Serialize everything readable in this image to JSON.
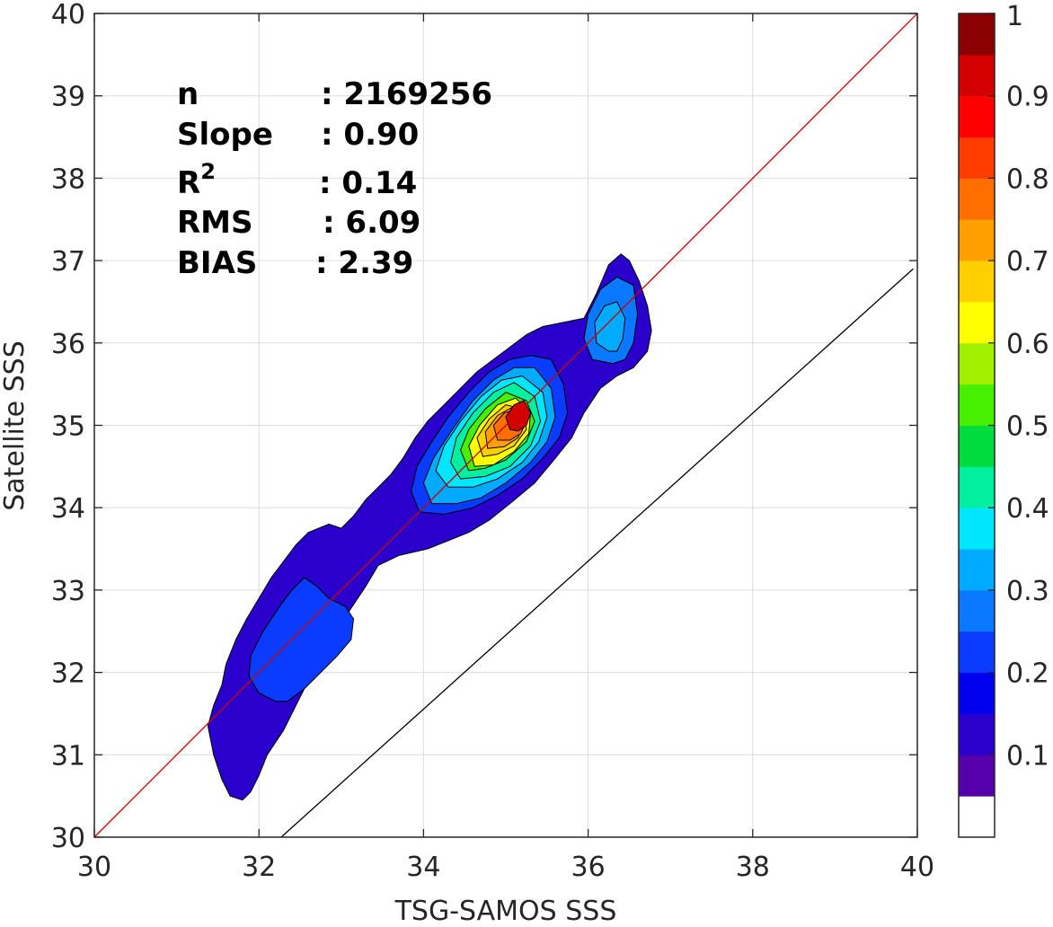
{
  "chart_data": {
    "type": "contour",
    "xlabel": "TSG-SAMOS SSS",
    "ylabel": "Satellite SSS",
    "xlim": [
      30,
      40
    ],
    "ylim": [
      30,
      40
    ],
    "x_ticks": [
      "30",
      "32",
      "34",
      "36",
      "38",
      "40"
    ],
    "y_ticks": [
      "30",
      "31",
      "32",
      "33",
      "34",
      "35",
      "36",
      "37",
      "38",
      "39",
      "40"
    ],
    "grid": true,
    "stats": {
      "n_label": "n",
      "n_value": ": 2169256",
      "slope_label": "Slope",
      "slope_value": ": 0.90",
      "r2_label": "R",
      "r2_sup": "2",
      "r2_value": ": 0.14",
      "rms_label": "RMS",
      "rms_value": ": 6.09",
      "bias_label": "BIAS",
      "bias_value": ": 2.39"
    },
    "lines": [
      {
        "name": "1:1",
        "color": "#d00000",
        "points": [
          [
            30,
            30
          ],
          [
            40,
            40
          ]
        ]
      },
      {
        "name": "fit",
        "color": "#000000",
        "points": [
          [
            32.27,
            30
          ],
          [
            39.95,
            36.9
          ]
        ]
      }
    ],
    "colorbar": {
      "labels": [
        "1",
        "0.9",
        "0.8",
        "0.7",
        "0.6",
        "0.5",
        "0.4",
        "0.3",
        "0.2",
        "0.1"
      ],
      "label_values": [
        1,
        0.9,
        0.8,
        0.7,
        0.6,
        0.5,
        0.4,
        0.3,
        0.2,
        0.1
      ],
      "colors": [
        "#ffffff",
        "#5500aa",
        "#2a00cc",
        "#0000ee",
        "#0a3cff",
        "#0a78ff",
        "#00aaff",
        "#00e6ff",
        "#00f0a0",
        "#00dc3c",
        "#46f000",
        "#a0f000",
        "#ffff00",
        "#ffd000",
        "#ffa000",
        "#ff6e00",
        "#ff3c00",
        "#ff0000",
        "#d20000",
        "#8b0000"
      ]
    },
    "contours": [
      {
        "level": 0.05,
        "color": "#2a00cc",
        "points": [
          [
            31.8,
            30.45
          ],
          [
            31.65,
            30.5
          ],
          [
            31.55,
            30.7
          ],
          [
            31.45,
            31.0
          ],
          [
            31.38,
            31.35
          ],
          [
            31.45,
            31.6
          ],
          [
            31.55,
            31.85
          ],
          [
            31.6,
            32.1
          ],
          [
            31.72,
            32.4
          ],
          [
            31.85,
            32.65
          ],
          [
            32.0,
            32.9
          ],
          [
            32.15,
            33.15
          ],
          [
            32.3,
            33.35
          ],
          [
            32.45,
            33.55
          ],
          [
            32.6,
            33.7
          ],
          [
            32.85,
            33.8
          ],
          [
            33.0,
            33.75
          ],
          [
            33.15,
            33.9
          ],
          [
            33.3,
            34.1
          ],
          [
            33.45,
            34.25
          ],
          [
            33.6,
            34.4
          ],
          [
            33.75,
            34.6
          ],
          [
            33.9,
            34.85
          ],
          [
            34.05,
            35.05
          ],
          [
            34.25,
            35.25
          ],
          [
            34.45,
            35.45
          ],
          [
            34.65,
            35.65
          ],
          [
            34.85,
            35.8
          ],
          [
            35.05,
            35.95
          ],
          [
            35.25,
            36.1
          ],
          [
            35.45,
            36.2
          ],
          [
            35.7,
            36.25
          ],
          [
            35.95,
            36.3
          ],
          [
            36.1,
            36.6
          ],
          [
            36.25,
            36.95
          ],
          [
            36.4,
            37.08
          ],
          [
            36.5,
            37.0
          ],
          [
            36.62,
            36.75
          ],
          [
            36.72,
            36.45
          ],
          [
            36.77,
            36.15
          ],
          [
            36.72,
            35.9
          ],
          [
            36.55,
            35.7
          ],
          [
            36.35,
            35.6
          ],
          [
            36.15,
            35.45
          ],
          [
            35.95,
            35.15
          ],
          [
            35.8,
            34.85
          ],
          [
            35.6,
            34.6
          ],
          [
            35.35,
            34.3
          ],
          [
            35.05,
            34.05
          ],
          [
            34.8,
            33.85
          ],
          [
            34.55,
            33.7
          ],
          [
            34.3,
            33.6
          ],
          [
            34.05,
            33.5
          ],
          [
            33.7,
            33.42
          ],
          [
            33.45,
            33.3
          ],
          [
            33.3,
            33.05
          ],
          [
            33.1,
            32.75
          ],
          [
            32.95,
            32.45
          ],
          [
            32.8,
            32.15
          ],
          [
            32.6,
            31.9
          ],
          [
            32.45,
            31.6
          ],
          [
            32.3,
            31.3
          ],
          [
            32.1,
            31.0
          ],
          [
            32.0,
            30.75
          ],
          [
            31.9,
            30.55
          ]
        ]
      },
      {
        "level": 0.15,
        "color": "#0a3cff",
        "points": [
          [
            32.2,
            31.65
          ],
          [
            32.0,
            31.75
          ],
          [
            31.88,
            31.95
          ],
          [
            31.9,
            32.2
          ],
          [
            32.05,
            32.5
          ],
          [
            32.25,
            32.8
          ],
          [
            32.4,
            33.0
          ],
          [
            32.55,
            33.15
          ],
          [
            32.7,
            33.05
          ],
          [
            32.85,
            32.9
          ],
          [
            33.05,
            32.8
          ],
          [
            33.15,
            32.65
          ],
          [
            33.12,
            32.4
          ],
          [
            32.95,
            32.2
          ],
          [
            32.75,
            32.0
          ],
          [
            32.55,
            31.8
          ],
          [
            32.35,
            31.65
          ]
        ]
      },
      {
        "level": 0.15,
        "color": "#0a3cff",
        "points": [
          [
            33.95,
            33.95
          ],
          [
            33.85,
            34.2
          ],
          [
            33.92,
            34.5
          ],
          [
            34.1,
            34.8
          ],
          [
            34.3,
            35.1
          ],
          [
            34.55,
            35.4
          ],
          [
            34.8,
            35.65
          ],
          [
            35.05,
            35.8
          ],
          [
            35.3,
            35.85
          ],
          [
            35.55,
            35.8
          ],
          [
            35.7,
            35.5
          ],
          [
            35.75,
            35.15
          ],
          [
            35.65,
            34.85
          ],
          [
            35.45,
            34.6
          ],
          [
            35.2,
            34.35
          ],
          [
            34.9,
            34.15
          ],
          [
            34.6,
            34.0
          ],
          [
            34.25,
            33.92
          ]
        ]
      },
      {
        "level": 0.15,
        "color": "#0a78ff",
        "points": [
          [
            36.3,
            35.75
          ],
          [
            36.05,
            35.8
          ],
          [
            35.95,
            36.05
          ],
          [
            36.0,
            36.35
          ],
          [
            36.15,
            36.65
          ],
          [
            36.35,
            36.8
          ],
          [
            36.55,
            36.7
          ],
          [
            36.6,
            36.35
          ],
          [
            36.55,
            36.0
          ],
          [
            36.45,
            35.8
          ]
        ]
      },
      {
        "level": 0.25,
        "color": "#00aaff",
        "points": [
          [
            36.25,
            35.9
          ],
          [
            36.1,
            36.0
          ],
          [
            36.08,
            36.25
          ],
          [
            36.2,
            36.45
          ],
          [
            36.35,
            36.5
          ],
          [
            36.45,
            36.3
          ],
          [
            36.42,
            36.05
          ],
          [
            36.35,
            35.9
          ]
        ]
      },
      {
        "level": 0.3,
        "color": "#00aaff",
        "points": [
          [
            34.1,
            34.05
          ],
          [
            34.0,
            34.3
          ],
          [
            34.12,
            34.6
          ],
          [
            34.35,
            34.95
          ],
          [
            34.6,
            35.3
          ],
          [
            34.85,
            35.55
          ],
          [
            35.1,
            35.7
          ],
          [
            35.35,
            35.7
          ],
          [
            35.55,
            35.45
          ],
          [
            35.6,
            35.1
          ],
          [
            35.5,
            34.8
          ],
          [
            35.3,
            34.55
          ],
          [
            35.0,
            34.3
          ],
          [
            34.7,
            34.12
          ],
          [
            34.4,
            34.05
          ]
        ]
      },
      {
        "level": 0.4,
        "color": "#00e6ff",
        "points": [
          [
            34.3,
            34.25
          ],
          [
            34.15,
            34.45
          ],
          [
            34.25,
            34.75
          ],
          [
            34.45,
            35.05
          ],
          [
            34.7,
            35.35
          ],
          [
            34.95,
            35.55
          ],
          [
            35.2,
            35.6
          ],
          [
            35.45,
            35.4
          ],
          [
            35.5,
            35.1
          ],
          [
            35.4,
            34.8
          ],
          [
            35.2,
            34.55
          ],
          [
            34.9,
            34.35
          ],
          [
            34.6,
            34.25
          ]
        ]
      },
      {
        "level": 0.45,
        "color": "#00f0a0",
        "points": [
          [
            34.45,
            34.35
          ],
          [
            34.33,
            34.55
          ],
          [
            34.4,
            34.85
          ],
          [
            34.6,
            35.15
          ],
          [
            34.85,
            35.4
          ],
          [
            35.1,
            35.52
          ],
          [
            35.35,
            35.35
          ],
          [
            35.42,
            35.05
          ],
          [
            35.3,
            34.75
          ],
          [
            35.05,
            34.5
          ],
          [
            34.75,
            34.38
          ]
        ]
      },
      {
        "level": 0.55,
        "color": "#46f000",
        "points": [
          [
            34.55,
            34.45
          ],
          [
            34.45,
            34.7
          ],
          [
            34.55,
            34.95
          ],
          [
            34.75,
            35.2
          ],
          [
            35.0,
            35.4
          ],
          [
            35.25,
            35.3
          ],
          [
            35.35,
            35.05
          ],
          [
            35.25,
            34.8
          ],
          [
            35.0,
            34.58
          ],
          [
            34.75,
            34.48
          ]
        ]
      },
      {
        "level": 0.6,
        "color": "#ffff00",
        "points": [
          [
            34.62,
            34.5
          ],
          [
            34.55,
            34.75
          ],
          [
            34.68,
            35.0
          ],
          [
            34.9,
            35.25
          ],
          [
            35.12,
            35.33
          ],
          [
            35.3,
            35.15
          ],
          [
            35.28,
            34.9
          ],
          [
            35.1,
            34.68
          ],
          [
            34.85,
            34.52
          ]
        ]
      },
      {
        "level": 0.7,
        "color": "#ffd000",
        "points": [
          [
            34.72,
            34.62
          ],
          [
            34.65,
            34.85
          ],
          [
            34.8,
            35.08
          ],
          [
            35.0,
            35.25
          ],
          [
            35.2,
            35.2
          ],
          [
            35.25,
            34.95
          ],
          [
            35.1,
            34.75
          ],
          [
            34.9,
            34.65
          ]
        ]
      },
      {
        "level": 0.8,
        "color": "#ffa000",
        "points": [
          [
            34.78,
            34.72
          ],
          [
            34.75,
            34.92
          ],
          [
            34.9,
            35.12
          ],
          [
            35.08,
            35.22
          ],
          [
            35.22,
            35.05
          ],
          [
            35.15,
            34.85
          ],
          [
            34.98,
            34.74
          ]
        ]
      },
      {
        "level": 0.85,
        "color": "#ff6e00",
        "points": [
          [
            34.9,
            34.82
          ],
          [
            34.85,
            35.0
          ],
          [
            34.98,
            35.15
          ],
          [
            35.15,
            35.2
          ],
          [
            35.25,
            35.05
          ],
          [
            35.18,
            34.9
          ],
          [
            35.05,
            34.82
          ]
        ]
      },
      {
        "level": 0.95,
        "color": "#d20000",
        "points": [
          [
            35.05,
            34.95
          ],
          [
            35.0,
            35.1
          ],
          [
            35.1,
            35.25
          ],
          [
            35.22,
            35.3
          ],
          [
            35.3,
            35.15
          ],
          [
            35.25,
            35.0
          ],
          [
            35.15,
            34.93
          ]
        ]
      }
    ]
  }
}
